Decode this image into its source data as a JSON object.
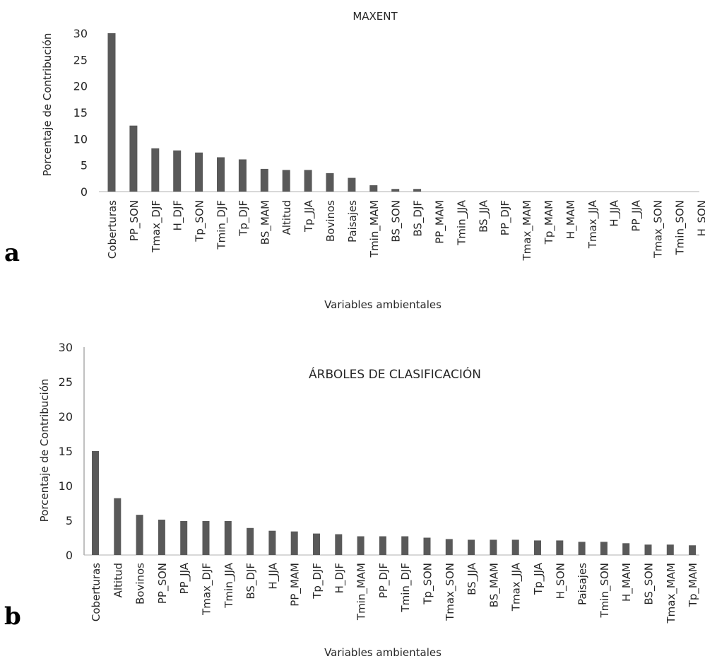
{
  "chart_data": [
    {
      "panel": "a",
      "type": "bar",
      "title": "MAXENT",
      "xlabel": "Variables ambientales",
      "ylabel": "Porcentaje de Contribución",
      "ylim": [
        0,
        30
      ],
      "yticks": [
        "0",
        "5",
        "10",
        "15",
        "20",
        "25",
        "30"
      ],
      "categories": [
        "Coberturas",
        "PP_SON",
        "Tmax_DJF",
        "H_DJF",
        "Tp_SON",
        "Tmin_DJF",
        "Tp_DJF",
        "BS_MAM",
        "Altitud",
        "Tp_JJA",
        "Bovinos",
        "Paisajes",
        "Tmin_MAM",
        "BS_SON",
        "BS_DJF",
        "PP_MAM",
        "Tmin_JJA",
        "BS_JJA",
        "PP_DJF",
        "Tmax_MAM",
        "Tp_MAM",
        "H_MAM",
        "Tmax_JJA",
        "H_JJA",
        "PP_JJA",
        "Tmax_SON",
        "Tmin_SON",
        "H_SON"
      ],
      "values": [
        30.0,
        12.5,
        8.2,
        7.8,
        7.4,
        6.5,
        6.1,
        4.3,
        4.1,
        4.1,
        3.5,
        2.6,
        1.2,
        0.5,
        0.5,
        0,
        0,
        0,
        0,
        0,
        0,
        0,
        0,
        0,
        0,
        0,
        0,
        0
      ],
      "bar_color": "#595959",
      "grid": false,
      "legend": "none"
    },
    {
      "panel": "b",
      "type": "bar",
      "title": "ÁRBOLES DE CLASIFICACIÓN",
      "xlabel": "Variables ambientales",
      "ylabel": "Porcentaje de Contribución",
      "ylim": [
        0,
        30
      ],
      "yticks": [
        "0",
        "5",
        "10",
        "15",
        "20",
        "25",
        "30"
      ],
      "categories": [
        "Coberturas",
        "Altitud",
        "Bovinos",
        "PP_SON",
        "PP_JJA",
        "Tmax_DJF",
        "Tmin_JJA",
        "BS_DJF",
        "H_JJA",
        "PP_MAM",
        "Tp_DJF",
        "H_DJF",
        "Tmin_MAM",
        "PP_DJF",
        "Tmin_DJF",
        "Tp_SON",
        "Tmax_SON",
        "BS_JJA",
        "BS_MAM",
        "Tmax_JJA",
        "Tp_JJA",
        "H_SON",
        "Paisajes",
        "Tmin_SON",
        "H_MAM",
        "BS_SON",
        "Tmax_MAM",
        "Tp_MAM"
      ],
      "values": [
        15.0,
        8.2,
        5.8,
        5.1,
        4.9,
        4.9,
        4.9,
        3.9,
        3.5,
        3.4,
        3.1,
        3.0,
        2.7,
        2.7,
        2.7,
        2.5,
        2.3,
        2.2,
        2.2,
        2.2,
        2.1,
        2.1,
        1.9,
        1.9,
        1.7,
        1.5,
        1.5,
        1.4
      ],
      "bar_color": "#595959",
      "grid": false,
      "legend": "none"
    }
  ]
}
